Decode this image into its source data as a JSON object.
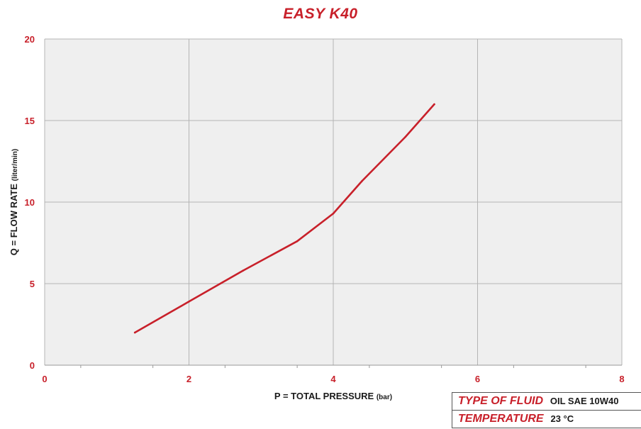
{
  "chart_data": {
    "type": "line",
    "title": "EASY K40",
    "xlabel": "P = TOTAL PRESSURE",
    "xlabel_unit": "(bar)",
    "ylabel": "Q = FLOW RATE",
    "ylabel_unit": "(liter/min)",
    "xlim": [
      0,
      8
    ],
    "ylim": [
      0,
      20
    ],
    "xticks": [
      0,
      2,
      4,
      6,
      8
    ],
    "yticks": [
      0,
      5,
      10,
      15,
      20
    ],
    "grid": true,
    "series": [
      {
        "color": "#c8202a",
        "x": [
          1.25,
          2.0,
          2.75,
          3.5,
          4.0,
          4.4,
          5.0,
          5.4
        ],
        "y": [
          2.0,
          3.9,
          5.8,
          7.6,
          9.3,
          11.3,
          14.0,
          16.0
        ]
      }
    ]
  },
  "info": [
    {
      "key": "TYPE OF FLUID",
      "value": "OIL SAE 10W40"
    },
    {
      "key": "TEMPERATURE",
      "value": "23 °C"
    }
  ],
  "colors": {
    "accent": "#c8202a",
    "plot_bg": "#efefef",
    "grid": "#b4b4b4"
  }
}
